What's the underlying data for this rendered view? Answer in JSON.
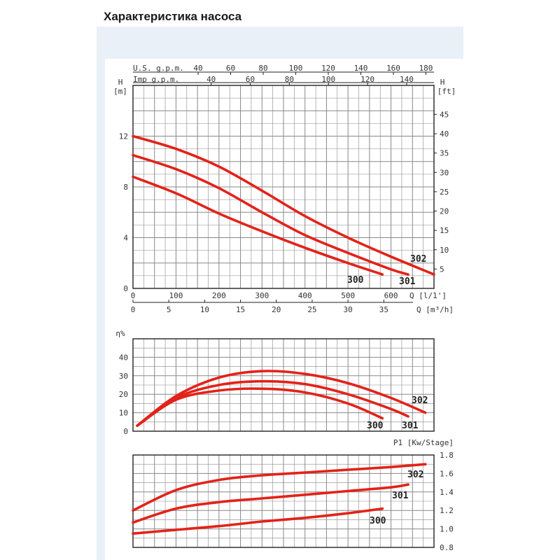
{
  "page": {
    "title": "Характеристика насоса"
  },
  "chart_data": [
    {
      "type": "line",
      "name": "head-curve",
      "ylabel_left": "H",
      "ylabel_left_unit": "[m]",
      "ylabel_right": "H",
      "ylabel_right_unit": "[ft]",
      "top_axis_1_label": "U.S. g.p.m.",
      "top_axis_1_ticks": [
        40,
        60,
        80,
        100,
        120,
        140,
        160,
        180
      ],
      "top_axis_2_label": "Imp g.p.m.",
      "top_axis_2_ticks": [
        40,
        60,
        80,
        100,
        120,
        140
      ],
      "x_label": "Q [l/1']",
      "x_ticks": [
        0,
        100,
        200,
        300,
        400,
        500,
        600
      ],
      "x2_label": "Q [m³/h]",
      "x2_ticks": [
        0,
        5,
        10,
        15,
        20,
        25,
        30,
        35
      ],
      "xlim": [
        0,
        700
      ],
      "ylim": [
        0,
        16
      ],
      "y_ticks": [
        0,
        4,
        8,
        12
      ],
      "y_right_ticks": [
        5,
        10,
        15,
        20,
        25,
        30,
        35,
        40,
        45
      ],
      "color": "#e32219",
      "series": [
        {
          "name": "302",
          "x": [
            0,
            100,
            200,
            300,
            400,
            500,
            600,
            700
          ],
          "y": [
            12.0,
            11.0,
            9.6,
            7.7,
            5.7,
            4.0,
            2.5,
            1.1
          ]
        },
        {
          "name": "301",
          "x": [
            0,
            100,
            200,
            300,
            400,
            500,
            600,
            640
          ],
          "y": [
            10.5,
            9.4,
            7.9,
            6.0,
            4.2,
            2.8,
            1.5,
            1.1
          ]
        },
        {
          "name": "300",
          "x": [
            0,
            100,
            200,
            300,
            400,
            500,
            580
          ],
          "y": [
            8.8,
            7.5,
            5.9,
            4.5,
            3.2,
            2.0,
            1.1
          ]
        }
      ]
    },
    {
      "type": "line",
      "name": "efficiency-curve",
      "ylabel": "η%",
      "xlim": [
        0,
        700
      ],
      "ylim": [
        0,
        50
      ],
      "y_ticks": [
        0,
        10,
        20,
        30,
        40
      ],
      "color": "#e32219",
      "series": [
        {
          "name": "302",
          "x": [
            10,
            100,
            200,
            300,
            400,
            500,
            600,
            680
          ],
          "y": [
            3,
            19,
            29,
            32.5,
            31,
            26,
            18,
            10
          ]
        },
        {
          "name": "301",
          "x": [
            10,
            100,
            200,
            300,
            400,
            500,
            600,
            640
          ],
          "y": [
            3,
            18,
            25,
            27,
            25.5,
            20,
            12,
            8
          ]
        },
        {
          "name": "300",
          "x": [
            10,
            100,
            200,
            300,
            400,
            500,
            580
          ],
          "y": [
            3,
            17,
            22,
            23,
            21,
            15,
            7
          ]
        }
      ]
    },
    {
      "type": "line",
      "name": "power-curve",
      "ylabel": "P1 [Kw/Stage]",
      "xlim": [
        0,
        700
      ],
      "ylim": [
        0.8,
        1.8
      ],
      "y_ticks": [
        0.8,
        1.0,
        1.2,
        1.4,
        1.6,
        1.8
      ],
      "color": "#e32219",
      "series": [
        {
          "name": "302",
          "x": [
            0,
            100,
            200,
            300,
            400,
            500,
            600,
            680
          ],
          "y": [
            1.2,
            1.42,
            1.53,
            1.58,
            1.61,
            1.64,
            1.67,
            1.7
          ]
        },
        {
          "name": "301",
          "x": [
            0,
            100,
            200,
            300,
            400,
            500,
            600,
            640
          ],
          "y": [
            1.07,
            1.22,
            1.29,
            1.33,
            1.37,
            1.41,
            1.45,
            1.48
          ]
        },
        {
          "name": "300",
          "x": [
            0,
            100,
            200,
            300,
            400,
            500,
            580
          ],
          "y": [
            0.95,
            0.99,
            1.03,
            1.08,
            1.12,
            1.17,
            1.22
          ]
        }
      ]
    }
  ]
}
